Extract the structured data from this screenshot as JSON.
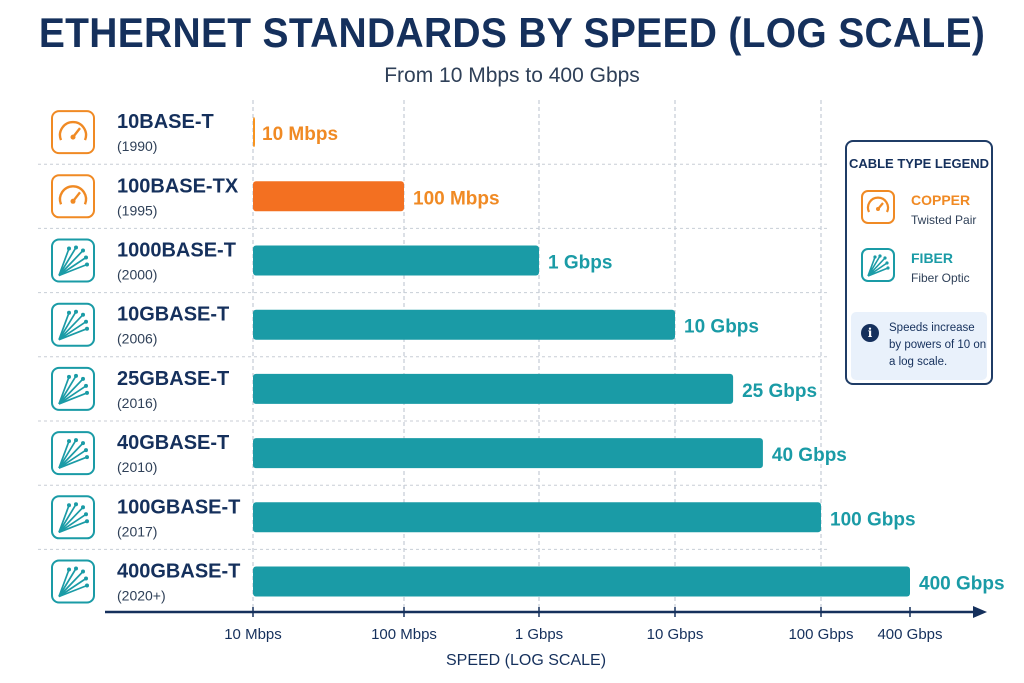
{
  "title": "ETHERNET STANDARDS BY SPEED (LOG SCALE)",
  "subtitle": "From 10 Mbps to 400 Gbps",
  "legend": {
    "title": "CABLE TYPE LEGEND",
    "items": [
      {
        "name": "COPPER",
        "sub": "Twisted Pair",
        "color": "#f08a24",
        "icon": "speedometer-icon"
      },
      {
        "name": "FIBER",
        "sub": "Fiber Optic",
        "color": "#1a9ba6",
        "icon": "fiber-optic-icon"
      }
    ],
    "note": "Speeds increase by powers of 10 on a log scale.",
    "note_icon": "info-icon"
  },
  "colors": {
    "copper_10": "#f7931e",
    "copper_100": "#f37021",
    "fiber": "#1a9ba6",
    "copper_label": "#f08a24",
    "fiber_label": "#1a9ba6",
    "axis": "#15305c"
  },
  "chart_data": {
    "type": "bar",
    "orientation": "horizontal",
    "xscale": "log",
    "xlabel": "SPEED (LOG SCALE)",
    "ylabel": "",
    "xlim": [
      10,
      400000
    ],
    "x_units": "Mbps",
    "tick_values": [
      10,
      100,
      1000,
      10000,
      100000,
      400000
    ],
    "tick_labels": [
      "10 Mbps",
      "100 Mbps",
      "1 Gbps",
      "10 Gbps",
      "100 Gbps",
      "400 Gbps"
    ],
    "grid": true,
    "legend_position": "right",
    "categories": [
      "10BASE-T",
      "100BASE-TX",
      "1000BASE-T",
      "10GBASE-T",
      "25GBASE-T",
      "40GBASE-T",
      "100GBASE-T",
      "400GBASE-T"
    ],
    "years": [
      "(1990)",
      "(1995)",
      "(2000)",
      "(2006)",
      "(2016)",
      "(2010)",
      "(2017)",
      "(2020+)"
    ],
    "cable": [
      "copper",
      "copper",
      "fiber",
      "fiber",
      "fiber",
      "fiber",
      "fiber",
      "fiber"
    ],
    "values": [
      10,
      100,
      1000,
      10000,
      25000,
      40000,
      100000,
      400000
    ],
    "value_labels": [
      "10 Mbps",
      "100 Mbps",
      "1 Gbps",
      "10 Gbps",
      "25 Gbps",
      "40 Gbps",
      "100 Gbps",
      "400 Gbps"
    ]
  }
}
